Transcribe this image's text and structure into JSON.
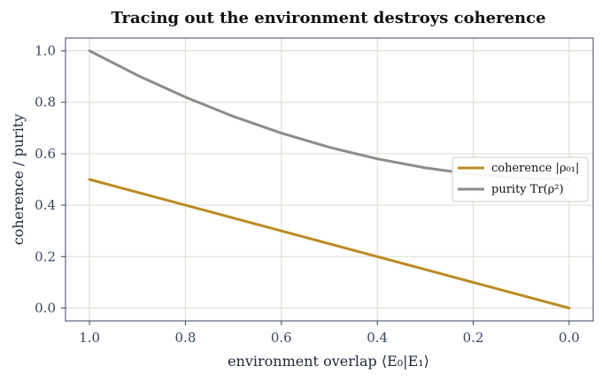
{
  "chart_data": {
    "type": "line",
    "title": "Tracing out the environment destroys coherence",
    "xlabel": "environment overlap  ⟨E₀|E₁⟩",
    "ylabel": "coherence / purity",
    "x_reversed": true,
    "xlim": [
      1.05,
      -0.05
    ],
    "ylim": [
      -0.05,
      1.05
    ],
    "xticks": [
      1.0,
      0.8,
      0.6,
      0.4,
      0.2,
      0.0
    ],
    "xtick_labels": [
      "1.0",
      "0.8",
      "0.6",
      "0.4",
      "0.2",
      "0.0"
    ],
    "yticks": [
      0.0,
      0.2,
      0.4,
      0.6,
      0.8,
      1.0
    ],
    "ytick_labels": [
      "0.0",
      "0.2",
      "0.4",
      "0.6",
      "0.8",
      "1.0"
    ],
    "grid": true,
    "legend_position": "center-right",
    "series": [
      {
        "name": "coherence |ρ₀₁|",
        "color": "#bc8a24",
        "x": [
          1.0,
          0.8,
          0.6,
          0.4,
          0.2,
          0.0
        ],
        "y": [
          0.5,
          0.4,
          0.3,
          0.2,
          0.1,
          0.0
        ]
      },
      {
        "name": "purity Tr(ρ²)",
        "color": "#8c8c8c",
        "x": [
          1.0,
          0.9,
          0.8,
          0.7,
          0.6,
          0.5,
          0.4,
          0.3,
          0.2,
          0.1,
          0.0
        ],
        "y": [
          1.0,
          0.905,
          0.82,
          0.745,
          0.68,
          0.625,
          0.58,
          0.545,
          0.52,
          0.505,
          0.5
        ]
      }
    ]
  }
}
